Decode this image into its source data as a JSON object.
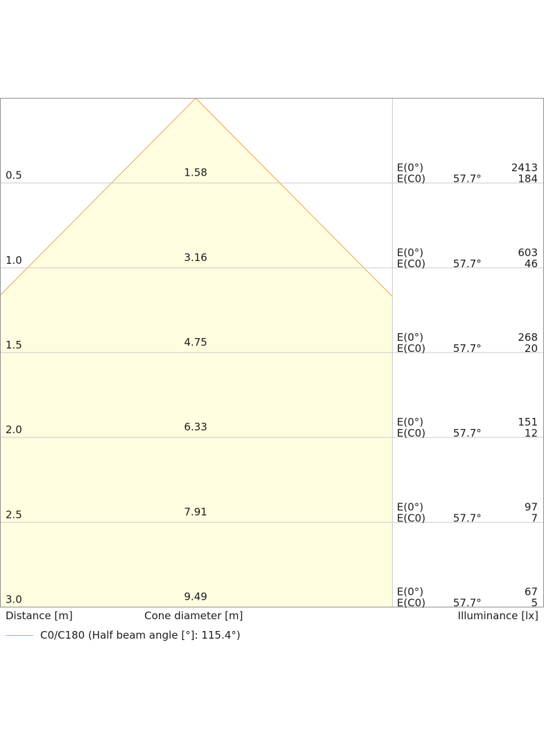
{
  "chart_data": {
    "type": "area",
    "title": "",
    "xlabel": "Cone diameter [m]",
    "ylabel": "Distance [m]",
    "illuminance_label": "Illuminance [lx]",
    "legend": {
      "label": "C0/C180 (Half beam angle [°]: 115.4°)",
      "color": "#f5a04a",
      "placement": "bottom-left"
    },
    "half_beam_angle_deg": 115.4,
    "fill_color": "#fefde0",
    "grid": true,
    "ylim": [
      0,
      3.0
    ],
    "rows": [
      {
        "distance": "0.5",
        "cone_diameter": "1.58",
        "e0_label": "E(0°)",
        "ec0_label": "E(C0)",
        "angle": "57.7°",
        "e0": "2413",
        "ec0": "184"
      },
      {
        "distance": "1.0",
        "cone_diameter": "3.16",
        "e0_label": "E(0°)",
        "ec0_label": "E(C0)",
        "angle": "57.7°",
        "e0": "603",
        "ec0": "46"
      },
      {
        "distance": "1.5",
        "cone_diameter": "4.75",
        "e0_label": "E(0°)",
        "ec0_label": "E(C0)",
        "angle": "57.7°",
        "e0": "268",
        "ec0": "20"
      },
      {
        "distance": "2.0",
        "cone_diameter": "6.33",
        "e0_label": "E(0°)",
        "ec0_label": "E(C0)",
        "angle": "57.7°",
        "e0": "151",
        "ec0": "12"
      },
      {
        "distance": "2.5",
        "cone_diameter": "7.91",
        "e0_label": "E(0°)",
        "ec0_label": "E(C0)",
        "angle": "57.7°",
        "e0": "97",
        "ec0": "7"
      },
      {
        "distance": "3.0",
        "cone_diameter": "9.49",
        "e0_label": "E(0°)",
        "ec0_label": "E(C0)",
        "angle": "57.7°",
        "e0": "67",
        "ec0": "5"
      }
    ]
  }
}
